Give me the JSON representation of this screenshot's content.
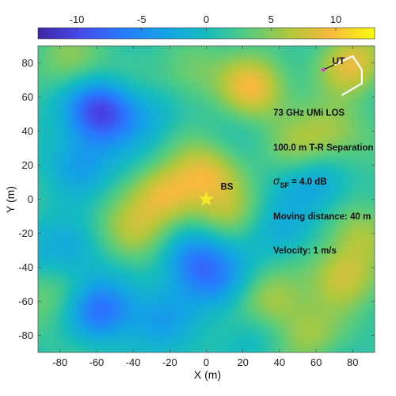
{
  "chart_data": {
    "type": "heatmap",
    "xlabel": "X (m)",
    "ylabel": "Y (m)",
    "xlim": [
      -92,
      92
    ],
    "ylim": [
      -90,
      90
    ],
    "x_ticks": [
      -80,
      -60,
      -40,
      -20,
      0,
      20,
      40,
      60,
      80
    ],
    "y_ticks": [
      80,
      60,
      40,
      20,
      0,
      -20,
      -40,
      -60,
      -80
    ],
    "colorbar": {
      "range": [
        -13,
        13
      ],
      "ticks": [
        -10,
        -5,
        0,
        5,
        10
      ],
      "colormap": "parula"
    },
    "hotspots": [
      {
        "x": -58,
        "y": 52,
        "value": -11
      },
      {
        "x": -70,
        "y": 20,
        "value": -5
      },
      {
        "x": -30,
        "y": 48,
        "value": -3
      },
      {
        "x": -58,
        "y": -65,
        "value": -8
      },
      {
        "x": -8,
        "y": -35,
        "value": -7
      },
      {
        "x": 5,
        "y": -50,
        "value": -5
      },
      {
        "x": -25,
        "y": -70,
        "value": -4
      },
      {
        "x": -75,
        "y": -30,
        "value": -4
      },
      {
        "x": 60,
        "y": 10,
        "value": -4
      },
      {
        "x": 25,
        "y": -80,
        "value": -3
      },
      {
        "x": 40,
        "y": -20,
        "value": -4
      },
      {
        "x": -22,
        "y": 2,
        "value": 8
      },
      {
        "x": 0,
        "y": 15,
        "value": 6
      },
      {
        "x": 25,
        "y": 65,
        "value": 8
      },
      {
        "x": 80,
        "y": 80,
        "value": 8
      },
      {
        "x": 35,
        "y": -60,
        "value": 6
      },
      {
        "x": 75,
        "y": -45,
        "value": 6
      },
      {
        "x": 85,
        "y": -20,
        "value": 5
      },
      {
        "x": -40,
        "y": -20,
        "value": 5
      },
      {
        "x": -75,
        "y": 80,
        "value": 4
      },
      {
        "x": -10,
        "y": 75,
        "value": 4
      },
      {
        "x": 50,
        "y": 30,
        "value": 4
      },
      {
        "x": -80,
        "y": -55,
        "value": 3
      },
      {
        "x": 10,
        "y": -10,
        "value": 4
      },
      {
        "x": 70,
        "y": 40,
        "value": 4
      },
      {
        "x": 55,
        "y": -80,
        "value": 5
      }
    ],
    "markers": {
      "bs": {
        "label": "BS",
        "x": 0,
        "y": 0,
        "color": "#f5e82a"
      },
      "ut": {
        "label": "UT",
        "x": 64,
        "y": 76,
        "color": "#d63adb"
      }
    },
    "ut_path": [
      [
        64,
        76
      ],
      [
        70,
        79
      ],
      [
        80,
        84
      ],
      [
        85,
        76
      ],
      [
        85,
        68
      ],
      [
        74,
        61
      ]
    ],
    "annotations": {
      "line1": "73 GHz UMi LOS",
      "line2": "100.0 m T-R Separation",
      "sigma_symbol": "σ",
      "sigma_sub": "SF",
      "sigma_rest": " = 4.0 dB",
      "line4": "Moving distance: 40 m",
      "line5": "Velocity: 1 m/s"
    }
  }
}
